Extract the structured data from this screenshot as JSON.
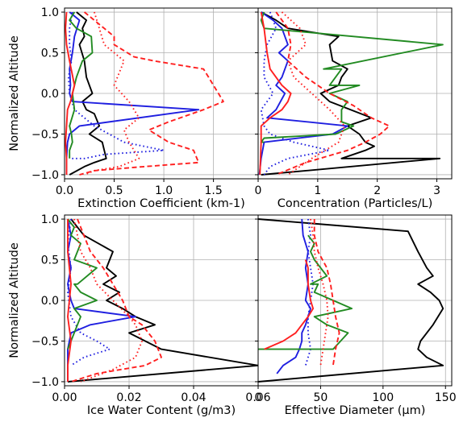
{
  "figure": {
    "shared_ylabel": "Normalized Altitude"
  },
  "chart_data": [
    {
      "type": "line",
      "panel": "top-left",
      "xlabel": "Extinction Coefficient (km-1)",
      "ylabel": "Normalized Altitude",
      "xlim": [
        0,
        1.95
      ],
      "ylim": [
        -1.05,
        1.05
      ],
      "xticks": [
        0,
        0.5,
        1,
        1.5
      ],
      "xtick_labels": [
        "0.0",
        "0.5",
        "1.0",
        "1.5"
      ],
      "yticks": [
        -1,
        -0.5,
        0,
        0.5,
        1
      ],
      "ytick_labels": [
        "−1.0",
        "−0.5",
        "0.0",
        "0.5",
        "1.0"
      ],
      "grid": true,
      "series": [
        {
          "color": "#000000",
          "style": "solid",
          "x": [
            0.12,
            0.22,
            0.18,
            0.2,
            0.15,
            0.2,
            0.22,
            0.28,
            0.18,
            0.22,
            0.3,
            0.35,
            0.25,
            0.38,
            0.42,
            0.3,
            0.2,
            0.05
          ],
          "y": [
            1.0,
            0.9,
            0.8,
            0.7,
            0.6,
            0.4,
            0.2,
            0.0,
            -0.1,
            -0.2,
            -0.25,
            -0.4,
            -0.5,
            -0.6,
            -0.8,
            -0.85,
            -0.9,
            -1.0
          ]
        },
        {
          "color": "#1f1fe0",
          "style": "solid",
          "x": [
            0.05,
            0.15,
            0.1,
            0.08,
            0.05,
            0.06,
            0.05,
            0.08,
            1.35,
            0.15,
            0.05,
            0.03,
            0.02,
            0.02
          ],
          "y": [
            1.0,
            0.9,
            0.7,
            0.5,
            0.3,
            0.1,
            0.0,
            -0.1,
            -0.2,
            -0.4,
            -0.5,
            -0.6,
            -0.8,
            -1.0
          ]
        },
        {
          "color": "#1f1fe0",
          "style": "dotted",
          "x": [
            0.08,
            0.05,
            0.05,
            0.07,
            0.04,
            0.05,
            0.1,
            0.3,
            0.6,
            1.0,
            0.4,
            0.2,
            0.05
          ],
          "y": [
            1.0,
            0.8,
            0.6,
            0.4,
            0.2,
            0.0,
            -0.2,
            -0.4,
            -0.6,
            -0.7,
            -0.75,
            -0.8,
            -0.8
          ]
        },
        {
          "color": "#228b22",
          "style": "solid",
          "x": [
            0.1,
            0.05,
            0.12,
            0.27,
            0.28,
            0.18,
            0.12,
            0.08,
            0.1,
            0.05,
            0.07,
            0.08,
            0.05,
            0.05
          ],
          "y": [
            1.0,
            0.9,
            0.8,
            0.7,
            0.5,
            0.4,
            0.2,
            0.0,
            -0.2,
            -0.4,
            -0.5,
            -0.6,
            -0.7,
            -0.8
          ]
        },
        {
          "color": "#ff1f1f",
          "style": "solid",
          "x": [
            0.02,
            0.01,
            0.02,
            0.05,
            0.1,
            0.06,
            0.03,
            0.02,
            0.01,
            0.02,
            0.02
          ],
          "y": [
            1.0,
            0.8,
            0.6,
            0.4,
            0.1,
            -0.1,
            -0.2,
            -0.4,
            -0.6,
            -0.8,
            -1.0
          ]
        },
        {
          "color": "#ff1f1f",
          "style": "dashed",
          "x": [
            0.2,
            0.4,
            0.5,
            0.5,
            0.7,
            0.9,
            1.4,
            1.45,
            1.5,
            1.55,
            1.6,
            1.4,
            1.05,
            0.85,
            1.05,
            1.3,
            1.35,
            0.8,
            0.3,
            0.15
          ],
          "y": [
            1.0,
            0.8,
            0.7,
            0.6,
            0.45,
            0.4,
            0.3,
            0.2,
            0.1,
            0.0,
            -0.1,
            -0.2,
            -0.35,
            -0.45,
            -0.6,
            -0.7,
            -0.85,
            -0.9,
            -0.95,
            -1.0
          ]
        },
        {
          "color": "#ff1f1f",
          "style": "dotted",
          "x": [
            0.3,
            0.35,
            0.4,
            0.6,
            0.5,
            0.65,
            0.75,
            0.6,
            0.65,
            0.75,
            0.55,
            0.3,
            0.2
          ],
          "y": [
            1.0,
            0.8,
            0.6,
            0.4,
            0.1,
            -0.1,
            -0.3,
            -0.45,
            -0.6,
            -0.8,
            -0.9,
            -0.95,
            -1.0
          ]
        }
      ]
    },
    {
      "type": "line",
      "panel": "top-right",
      "xlabel": "Concentration (Particles/L)",
      "ylabel": "",
      "xlim": [
        0,
        3.25
      ],
      "ylim": [
        -1.05,
        1.05
      ],
      "xticks": [
        0,
        1,
        2,
        3
      ],
      "xtick_labels": [
        "0",
        "1",
        "2",
        "3"
      ],
      "yticks": [
        -1,
        -0.5,
        0,
        0.5,
        1
      ],
      "ytick_labels": [],
      "grid": true,
      "series": [
        {
          "color": "#000000",
          "style": "solid",
          "x": [
            0.05,
            0.3,
            0.5,
            1.35,
            1.2,
            1.25,
            1.5,
            1.4,
            1.35,
            1.05,
            1.2,
            1.9,
            1.5,
            1.7,
            1.8,
            1.95,
            1.8,
            1.4,
            3.05,
            0.05
          ],
          "y": [
            1.0,
            0.9,
            0.8,
            0.7,
            0.6,
            0.4,
            0.3,
            0.2,
            0.1,
            0.0,
            -0.1,
            -0.3,
            -0.4,
            -0.5,
            -0.6,
            -0.65,
            -0.7,
            -0.8,
            -0.8,
            -1.0
          ]
        },
        {
          "color": "#1f1fe0",
          "style": "solid",
          "x": [
            0.05,
            0.25,
            0.4,
            0.5,
            0.35,
            0.5,
            0.4,
            0.3,
            0.45,
            0.3,
            0.15,
            1.5,
            1.25,
            0.1,
            0.05,
            0.02
          ],
          "y": [
            1.0,
            0.9,
            0.8,
            0.6,
            0.5,
            0.4,
            0.2,
            0.1,
            0.0,
            -0.2,
            -0.3,
            -0.4,
            -0.5,
            -0.6,
            -0.8,
            -1.0
          ]
        },
        {
          "color": "#1f1fe0",
          "style": "dotted",
          "x": [
            0.2,
            0.3,
            0.15,
            0.1,
            0.1,
            0.25,
            0.05,
            0.1,
            0.2,
            0.6,
            1.2,
            0.5,
            0.2,
            0.1
          ],
          "y": [
            1.0,
            0.8,
            0.6,
            0.4,
            0.2,
            0.0,
            -0.2,
            -0.4,
            -0.5,
            -0.6,
            -0.7,
            -0.8,
            -0.9,
            -1.0
          ]
        },
        {
          "color": "#228b22",
          "style": "solid",
          "x": [
            0.1,
            0.05,
            0.1,
            3.1,
            1.1,
            1.4,
            1.3,
            1.2,
            1.7,
            1.2,
            1.5,
            1.4,
            1.4,
            1.6,
            1.3,
            0.1,
            0.05,
            0.1
          ],
          "y": [
            1.0,
            0.9,
            0.8,
            0.6,
            0.3,
            0.3,
            0.2,
            0.1,
            0.1,
            0.0,
            -0.1,
            -0.2,
            -0.35,
            -0.4,
            -0.5,
            -0.55,
            -0.6,
            -0.6
          ]
        },
        {
          "color": "#ff1f1f",
          "style": "solid",
          "x": [
            0.05,
            0.1,
            0.15,
            0.2,
            0.4,
            0.55,
            0.5,
            0.4,
            0.2,
            0.05,
            0.05,
            0.03
          ],
          "y": [
            1.0,
            0.8,
            0.5,
            0.3,
            0.1,
            0.0,
            -0.1,
            -0.2,
            -0.3,
            -0.4,
            -0.6,
            -1.0
          ]
        },
        {
          "color": "#ff1f1f",
          "style": "dashed",
          "x": [
            0.3,
            0.5,
            0.55,
            0.5,
            0.8,
            1.2,
            1.6,
            1.9,
            2.2,
            2.05,
            1.8,
            1.5,
            0.8,
            0.3
          ],
          "y": [
            1.0,
            0.8,
            0.6,
            0.4,
            0.2,
            0.0,
            -0.15,
            -0.3,
            -0.4,
            -0.5,
            -0.6,
            -0.7,
            -0.85,
            -1.0
          ]
        },
        {
          "color": "#ff1f1f",
          "style": "dotted",
          "x": [
            0.4,
            0.7,
            0.8,
            0.5,
            0.6,
            0.9,
            1.2,
            1.45,
            1.35,
            0.9,
            0.5
          ],
          "y": [
            1.0,
            0.8,
            0.6,
            0.4,
            0.2,
            0.0,
            -0.2,
            -0.4,
            -0.6,
            -0.8,
            -1.0
          ]
        }
      ]
    },
    {
      "type": "line",
      "panel": "bottom-left",
      "xlabel": "Ice Water Content (g/m3)",
      "ylabel": "Normalized Altitude",
      "xlim": [
        0,
        0.06
      ],
      "ylim": [
        -1.05,
        1.05
      ],
      "xticks": [
        0,
        0.02,
        0.04,
        0.06
      ],
      "xtick_labels": [
        "0.00",
        "0.02",
        "0.04",
        "0.06"
      ],
      "yticks": [
        -1,
        -0.5,
        0,
        0.5,
        1
      ],
      "ytick_labels": [
        "−1.0",
        "−0.5",
        "0.0",
        "0.5",
        "1.0"
      ],
      "grid": true,
      "series": [
        {
          "color": "#000000",
          "style": "solid",
          "x": [
            0.002,
            0.006,
            0.015,
            0.013,
            0.016,
            0.012,
            0.017,
            0.013,
            0.018,
            0.022,
            0.028,
            0.02,
            0.025,
            0.03,
            0.06,
            0.001
          ],
          "y": [
            1.0,
            0.8,
            0.6,
            0.4,
            0.3,
            0.2,
            0.1,
            0.0,
            -0.1,
            -0.2,
            -0.3,
            -0.4,
            -0.5,
            -0.6,
            -0.8,
            -1.0
          ]
        },
        {
          "color": "#1f1fe0",
          "style": "solid",
          "x": [
            0.001,
            0.002,
            0.001,
            0.002,
            0.001,
            0.002,
            0.003,
            0.022,
            0.008,
            0.002,
            0.001,
            0.001,
            0.001
          ],
          "y": [
            1.0,
            0.8,
            0.6,
            0.4,
            0.2,
            0.0,
            -0.1,
            -0.2,
            -0.3,
            -0.4,
            -0.6,
            -0.8,
            -1.0
          ]
        },
        {
          "color": "#1f1fe0",
          "style": "dotted",
          "x": [
            0.002,
            0.001,
            0.002,
            0.001,
            0.002,
            0.005,
            0.01,
            0.014,
            0.006,
            0.002
          ],
          "y": [
            1.0,
            0.7,
            0.4,
            0.1,
            -0.2,
            -0.4,
            -0.5,
            -0.6,
            -0.7,
            -0.8
          ]
        },
        {
          "color": "#228b22",
          "style": "solid",
          "x": [
            0.001,
            0.003,
            0.002,
            0.005,
            0.003,
            0.01,
            0.004,
            0.003,
            0.005,
            0.01,
            0.003,
            0.005,
            0.001
          ],
          "y": [
            1.0,
            0.9,
            0.8,
            0.7,
            0.5,
            0.4,
            0.2,
            0.2,
            0.1,
            0.0,
            -0.1,
            -0.2,
            -0.6
          ]
        },
        {
          "color": "#ff1f1f",
          "style": "solid",
          "x": [
            0.001,
            0.001,
            0.002,
            0.001,
            0.002,
            0.001,
            0.001
          ],
          "y": [
            1.0,
            0.6,
            0.2,
            -0.2,
            -0.5,
            -0.8,
            -1.0
          ]
        },
        {
          "color": "#ff1f1f",
          "style": "dashed",
          "x": [
            0.004,
            0.006,
            0.008,
            0.012,
            0.015,
            0.018,
            0.02,
            0.024,
            0.028,
            0.03,
            0.025,
            0.01,
            0.002
          ],
          "y": [
            1.0,
            0.8,
            0.6,
            0.4,
            0.2,
            0.0,
            -0.2,
            -0.3,
            -0.5,
            -0.7,
            -0.8,
            -0.9,
            -1.0
          ]
        },
        {
          "color": "#ff1f1f",
          "style": "dotted",
          "x": [
            0.003,
            0.004,
            0.005,
            0.008,
            0.01,
            0.015,
            0.02,
            0.022,
            0.024,
            0.022,
            0.015,
            0.005
          ],
          "y": [
            1.0,
            0.8,
            0.6,
            0.4,
            0.2,
            0.0,
            -0.2,
            -0.3,
            -0.5,
            -0.7,
            -0.85,
            -1.0
          ]
        }
      ]
    },
    {
      "type": "line",
      "panel": "bottom-right",
      "xlabel": "Effective Diameter (µm)",
      "ylabel": "",
      "xlim": [
        0,
        155
      ],
      "ylim": [
        -1.05,
        1.05
      ],
      "xticks": [
        0,
        50,
        100,
        150
      ],
      "xtick_labels": [
        "0",
        "50",
        "100",
        "150"
      ],
      "yticks": [
        -1,
        -0.5,
        0,
        0.5,
        1
      ],
      "ytick_labels": [],
      "grid": true,
      "series": [
        {
          "color": "#000000",
          "style": "solid",
          "x": [
            0,
            120,
            128,
            135,
            140,
            128,
            138,
            145,
            148,
            140,
            130,
            128,
            135,
            148,
            0
          ],
          "y": [
            1.0,
            0.85,
            0.6,
            0.4,
            0.3,
            0.2,
            0.1,
            0.0,
            -0.1,
            -0.3,
            -0.5,
            -0.6,
            -0.7,
            -0.8,
            -1.0
          ]
        },
        {
          "color": "#1f1fe0",
          "style": "solid",
          "x": [
            35,
            36,
            40,
            38,
            40,
            38,
            42,
            40,
            38,
            35,
            35,
            33,
            30,
            20,
            15
          ],
          "y": [
            1.0,
            0.8,
            0.6,
            0.4,
            0.2,
            0.0,
            -0.1,
            -0.2,
            -0.3,
            -0.4,
            -0.5,
            -0.6,
            -0.7,
            -0.8,
            -0.9
          ]
        },
        {
          "color": "#1f1fe0",
          "style": "dotted",
          "x": [
            40,
            42,
            40,
            42,
            44,
            42,
            40,
            40,
            42,
            38
          ],
          "y": [
            1.0,
            0.8,
            0.6,
            0.4,
            0.2,
            0.0,
            -0.2,
            -0.4,
            -0.6,
            -0.8
          ]
        },
        {
          "color": "#228b22",
          "style": "solid",
          "x": [
            40,
            45,
            42,
            45,
            55,
            42,
            48,
            45,
            75,
            45,
            55,
            72,
            60,
            0
          ],
          "y": [
            0.8,
            0.7,
            0.6,
            0.5,
            0.3,
            0.2,
            0.2,
            0.1,
            -0.1,
            -0.2,
            -0.3,
            -0.4,
            -0.6,
            -0.6
          ]
        },
        {
          "color": "#ff1f1f",
          "style": "solid",
          "x": [
            38,
            40,
            40,
            42,
            44,
            40,
            35,
            30,
            20,
            5
          ],
          "y": [
            0.5,
            0.4,
            0.2,
            0.0,
            -0.1,
            -0.2,
            -0.3,
            -0.4,
            -0.5,
            -0.6
          ]
        },
        {
          "color": "#ff1f1f",
          "style": "dashed",
          "x": [
            45,
            45,
            48,
            55,
            58,
            60,
            62,
            65,
            62,
            60
          ],
          "y": [
            1.0,
            0.8,
            0.6,
            0.4,
            0.2,
            0.0,
            -0.2,
            -0.4,
            -0.6,
            -0.8
          ]
        },
        {
          "color": "#ff1f1f",
          "style": "dotted",
          "x": [
            42,
            44,
            45,
            48,
            52,
            55,
            56,
            54,
            52,
            50
          ],
          "y": [
            1.0,
            0.8,
            0.6,
            0.4,
            0.2,
            0.0,
            -0.2,
            -0.4,
            -0.6,
            -0.8
          ]
        }
      ]
    }
  ]
}
